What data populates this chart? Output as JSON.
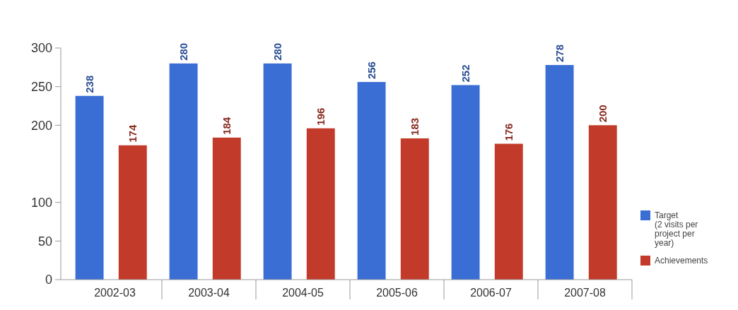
{
  "chart_data": {
    "type": "bar",
    "categories": [
      "2002-03",
      "2003-04",
      "2004-05",
      "2005-06",
      "2006-07",
      "2007-08"
    ],
    "series": [
      {
        "name": "Target\n(2 visits per\nproject per\nyear)",
        "color": "#3a6ed4",
        "values": [
          238,
          280,
          280,
          256,
          252,
          278
        ]
      },
      {
        "name": "Achievements",
        "color": "#c23b2a",
        "values": [
          174,
          184,
          196,
          183,
          176,
          200
        ]
      }
    ],
    "ylim": [
      0,
      300
    ],
    "yticks": [
      0,
      50,
      100,
      200,
      250,
      300
    ],
    "data_labels": true,
    "legend": "bottom right",
    "grid": false
  }
}
